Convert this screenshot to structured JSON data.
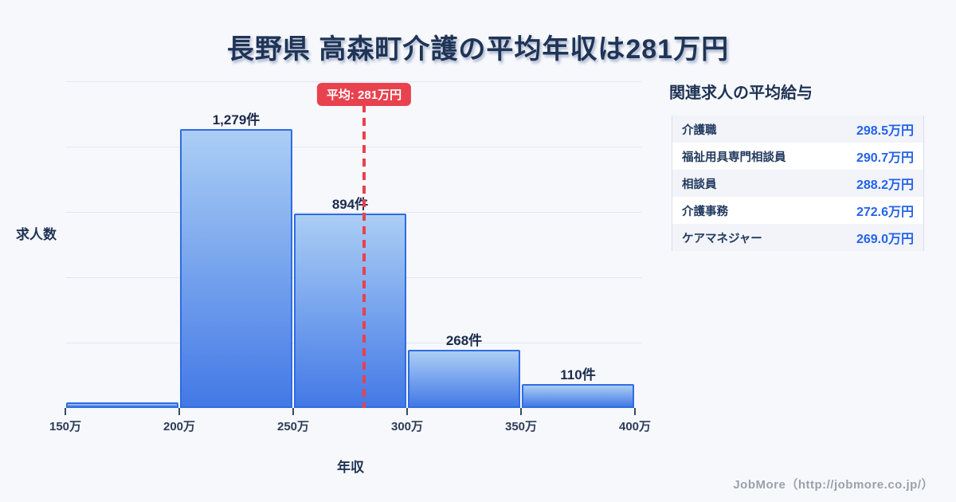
{
  "title": "長野県 高森町介護の平均年収は281万円",
  "chart_data": {
    "type": "bar",
    "subtype": "histogram",
    "bin_edges_labels": [
      "150万",
      "200万",
      "250万",
      "300万",
      "350万",
      "400万"
    ],
    "bin_edges_values": [
      150,
      200,
      250,
      300,
      350,
      400
    ],
    "values": [
      25,
      1279,
      894,
      268,
      110
    ],
    "bar_labels": [
      "",
      "1,279件",
      "894件",
      "268件",
      "110件"
    ],
    "xlabel": "年収",
    "ylabel": "求人数",
    "ylim": [
      0,
      1500
    ],
    "grid": "horizontal",
    "gridline_count": 5,
    "average_line": {
      "value": 281,
      "label": "平均: 281万円"
    },
    "colors": {
      "bar_border": "#2e6ce2",
      "bar_gradient_top": "#abcef5",
      "bar_gradient_bottom": "#4379e6",
      "average_red": "#e8424e",
      "gridline": "#e3e7ef",
      "label_text": "#1b2b4c"
    }
  },
  "panel": {
    "title": "関連求人の平均給与",
    "rows": [
      {
        "label": "介護職",
        "value": "298.5万円"
      },
      {
        "label": "福祉用具専門相談員",
        "value": "290.7万円"
      },
      {
        "label": "相談員",
        "value": "288.2万円"
      },
      {
        "label": "介護事務",
        "value": "272.6万円"
      },
      {
        "label": "ケアマネジャー",
        "value": "269.0万円"
      }
    ],
    "value_color": "#2563eb"
  },
  "footer": {
    "credit": "JobMore（http://jobmore.co.jp/）"
  }
}
